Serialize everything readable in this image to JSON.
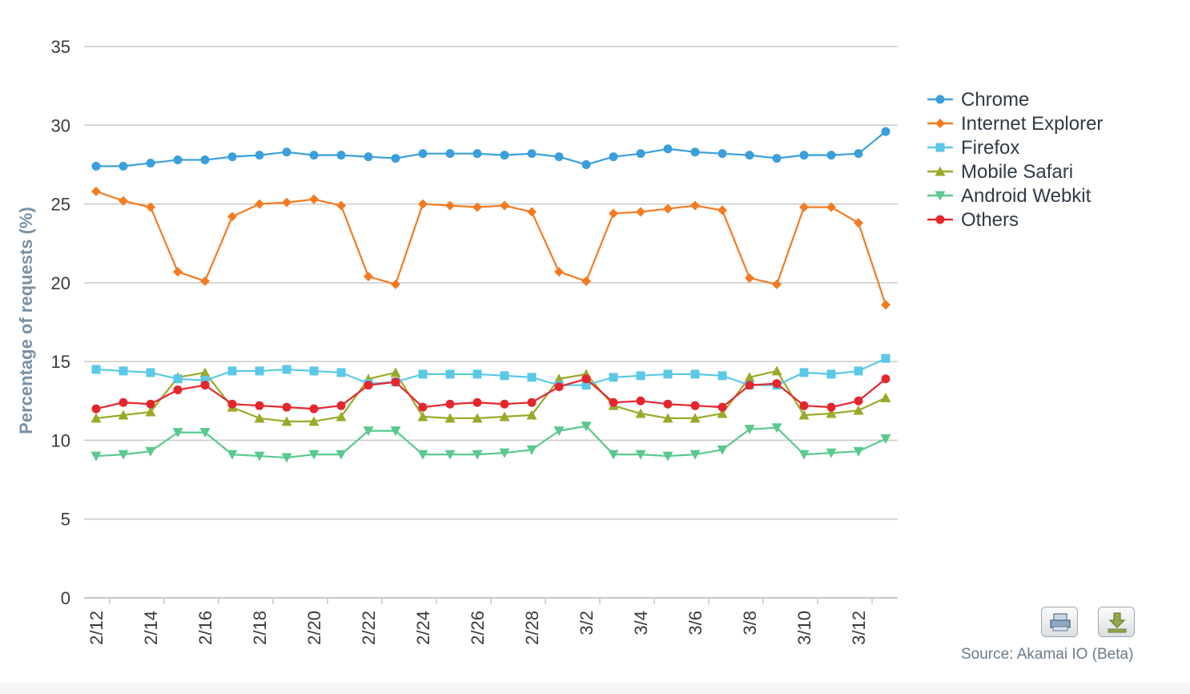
{
  "chart_data": {
    "type": "line",
    "title": "",
    "xlabel": "",
    "ylabel": "Percentage of requests (%)",
    "ylim": [
      0,
      35
    ],
    "yticks": [
      0,
      5,
      10,
      15,
      20,
      25,
      30,
      35
    ],
    "grid": true,
    "legend": "right",
    "x": [
      "2/12",
      "2/13",
      "2/14",
      "2/15",
      "2/16",
      "2/17",
      "2/18",
      "2/19",
      "2/20",
      "2/21",
      "2/22",
      "2/23",
      "2/24",
      "2/25",
      "2/26",
      "2/27",
      "2/28",
      "3/1",
      "3/2",
      "3/3",
      "3/4",
      "3/5",
      "3/6",
      "3/7",
      "3/8",
      "3/9",
      "3/10",
      "3/11",
      "3/12",
      "3/13"
    ],
    "x_tick_labels": [
      "2/12",
      "2/14",
      "2/16",
      "2/18",
      "2/20",
      "2/22",
      "2/24",
      "2/26",
      "2/28",
      "3/2",
      "3/4",
      "3/6",
      "3/8",
      "3/10",
      "3/12"
    ],
    "series": [
      {
        "name": "Chrome",
        "color": "#3a9fdb",
        "marker": "circle",
        "values": [
          27.4,
          27.4,
          27.6,
          27.8,
          27.8,
          28.0,
          28.1,
          28.3,
          28.1,
          28.1,
          28.0,
          27.9,
          28.2,
          28.2,
          28.2,
          28.1,
          28.2,
          28.0,
          27.5,
          28.0,
          28.2,
          28.5,
          28.3,
          28.2,
          28.1,
          27.9,
          28.1,
          28.1,
          28.2,
          29.6
        ]
      },
      {
        "name": "Internet Explorer",
        "color": "#f47b20",
        "marker": "diamond",
        "values": [
          25.8,
          25.2,
          24.8,
          20.7,
          20.1,
          24.2,
          25.0,
          25.1,
          25.3,
          24.9,
          20.4,
          19.9,
          25.0,
          24.9,
          24.8,
          24.9,
          24.5,
          20.7,
          20.1,
          24.4,
          24.5,
          24.7,
          24.9,
          24.6,
          20.3,
          19.9,
          24.8,
          24.8,
          23.8,
          18.6
        ]
      },
      {
        "name": "Firefox",
        "color": "#5bc8e6",
        "marker": "square",
        "values": [
          14.5,
          14.4,
          14.3,
          13.9,
          13.8,
          14.4,
          14.4,
          14.5,
          14.4,
          14.3,
          13.6,
          13.7,
          14.2,
          14.2,
          14.2,
          14.1,
          14.0,
          13.5,
          13.5,
          14.0,
          14.1,
          14.2,
          14.2,
          14.1,
          13.5,
          13.5,
          14.3,
          14.2,
          14.4,
          15.2
        ]
      },
      {
        "name": "Mobile Safari",
        "color": "#9aaa28",
        "marker": "triangle-up",
        "values": [
          11.4,
          11.6,
          11.8,
          14.0,
          14.3,
          12.1,
          11.4,
          11.2,
          11.2,
          11.5,
          13.9,
          14.3,
          11.5,
          11.4,
          11.4,
          11.5,
          11.6,
          13.9,
          14.2,
          12.2,
          11.7,
          11.4,
          11.4,
          11.7,
          14.0,
          14.4,
          11.6,
          11.7,
          11.9,
          12.7
        ]
      },
      {
        "name": "Android Webkit",
        "color": "#59c98e",
        "marker": "triangle-down",
        "values": [
          9.0,
          9.1,
          9.3,
          10.5,
          10.5,
          9.1,
          9.0,
          8.9,
          9.1,
          9.1,
          10.6,
          10.6,
          9.1,
          9.1,
          9.1,
          9.2,
          9.4,
          10.6,
          10.9,
          9.1,
          9.1,
          9.0,
          9.1,
          9.4,
          10.7,
          10.8,
          9.1,
          9.2,
          9.3,
          10.1
        ]
      },
      {
        "name": "Others",
        "color": "#e5262f",
        "marker": "circle",
        "values": [
          12.0,
          12.4,
          12.3,
          13.2,
          13.5,
          12.3,
          12.2,
          12.1,
          12.0,
          12.2,
          13.5,
          13.7,
          12.1,
          12.3,
          12.4,
          12.3,
          12.4,
          13.4,
          13.9,
          12.4,
          12.5,
          12.3,
          12.2,
          12.1,
          13.5,
          13.6,
          12.2,
          12.1,
          12.5,
          13.9
        ]
      }
    ]
  },
  "source_text": "Source: Akamai IO (Beta)",
  "toolbar": {
    "print_icon": "printer-icon",
    "download_icon": "download-icon"
  }
}
